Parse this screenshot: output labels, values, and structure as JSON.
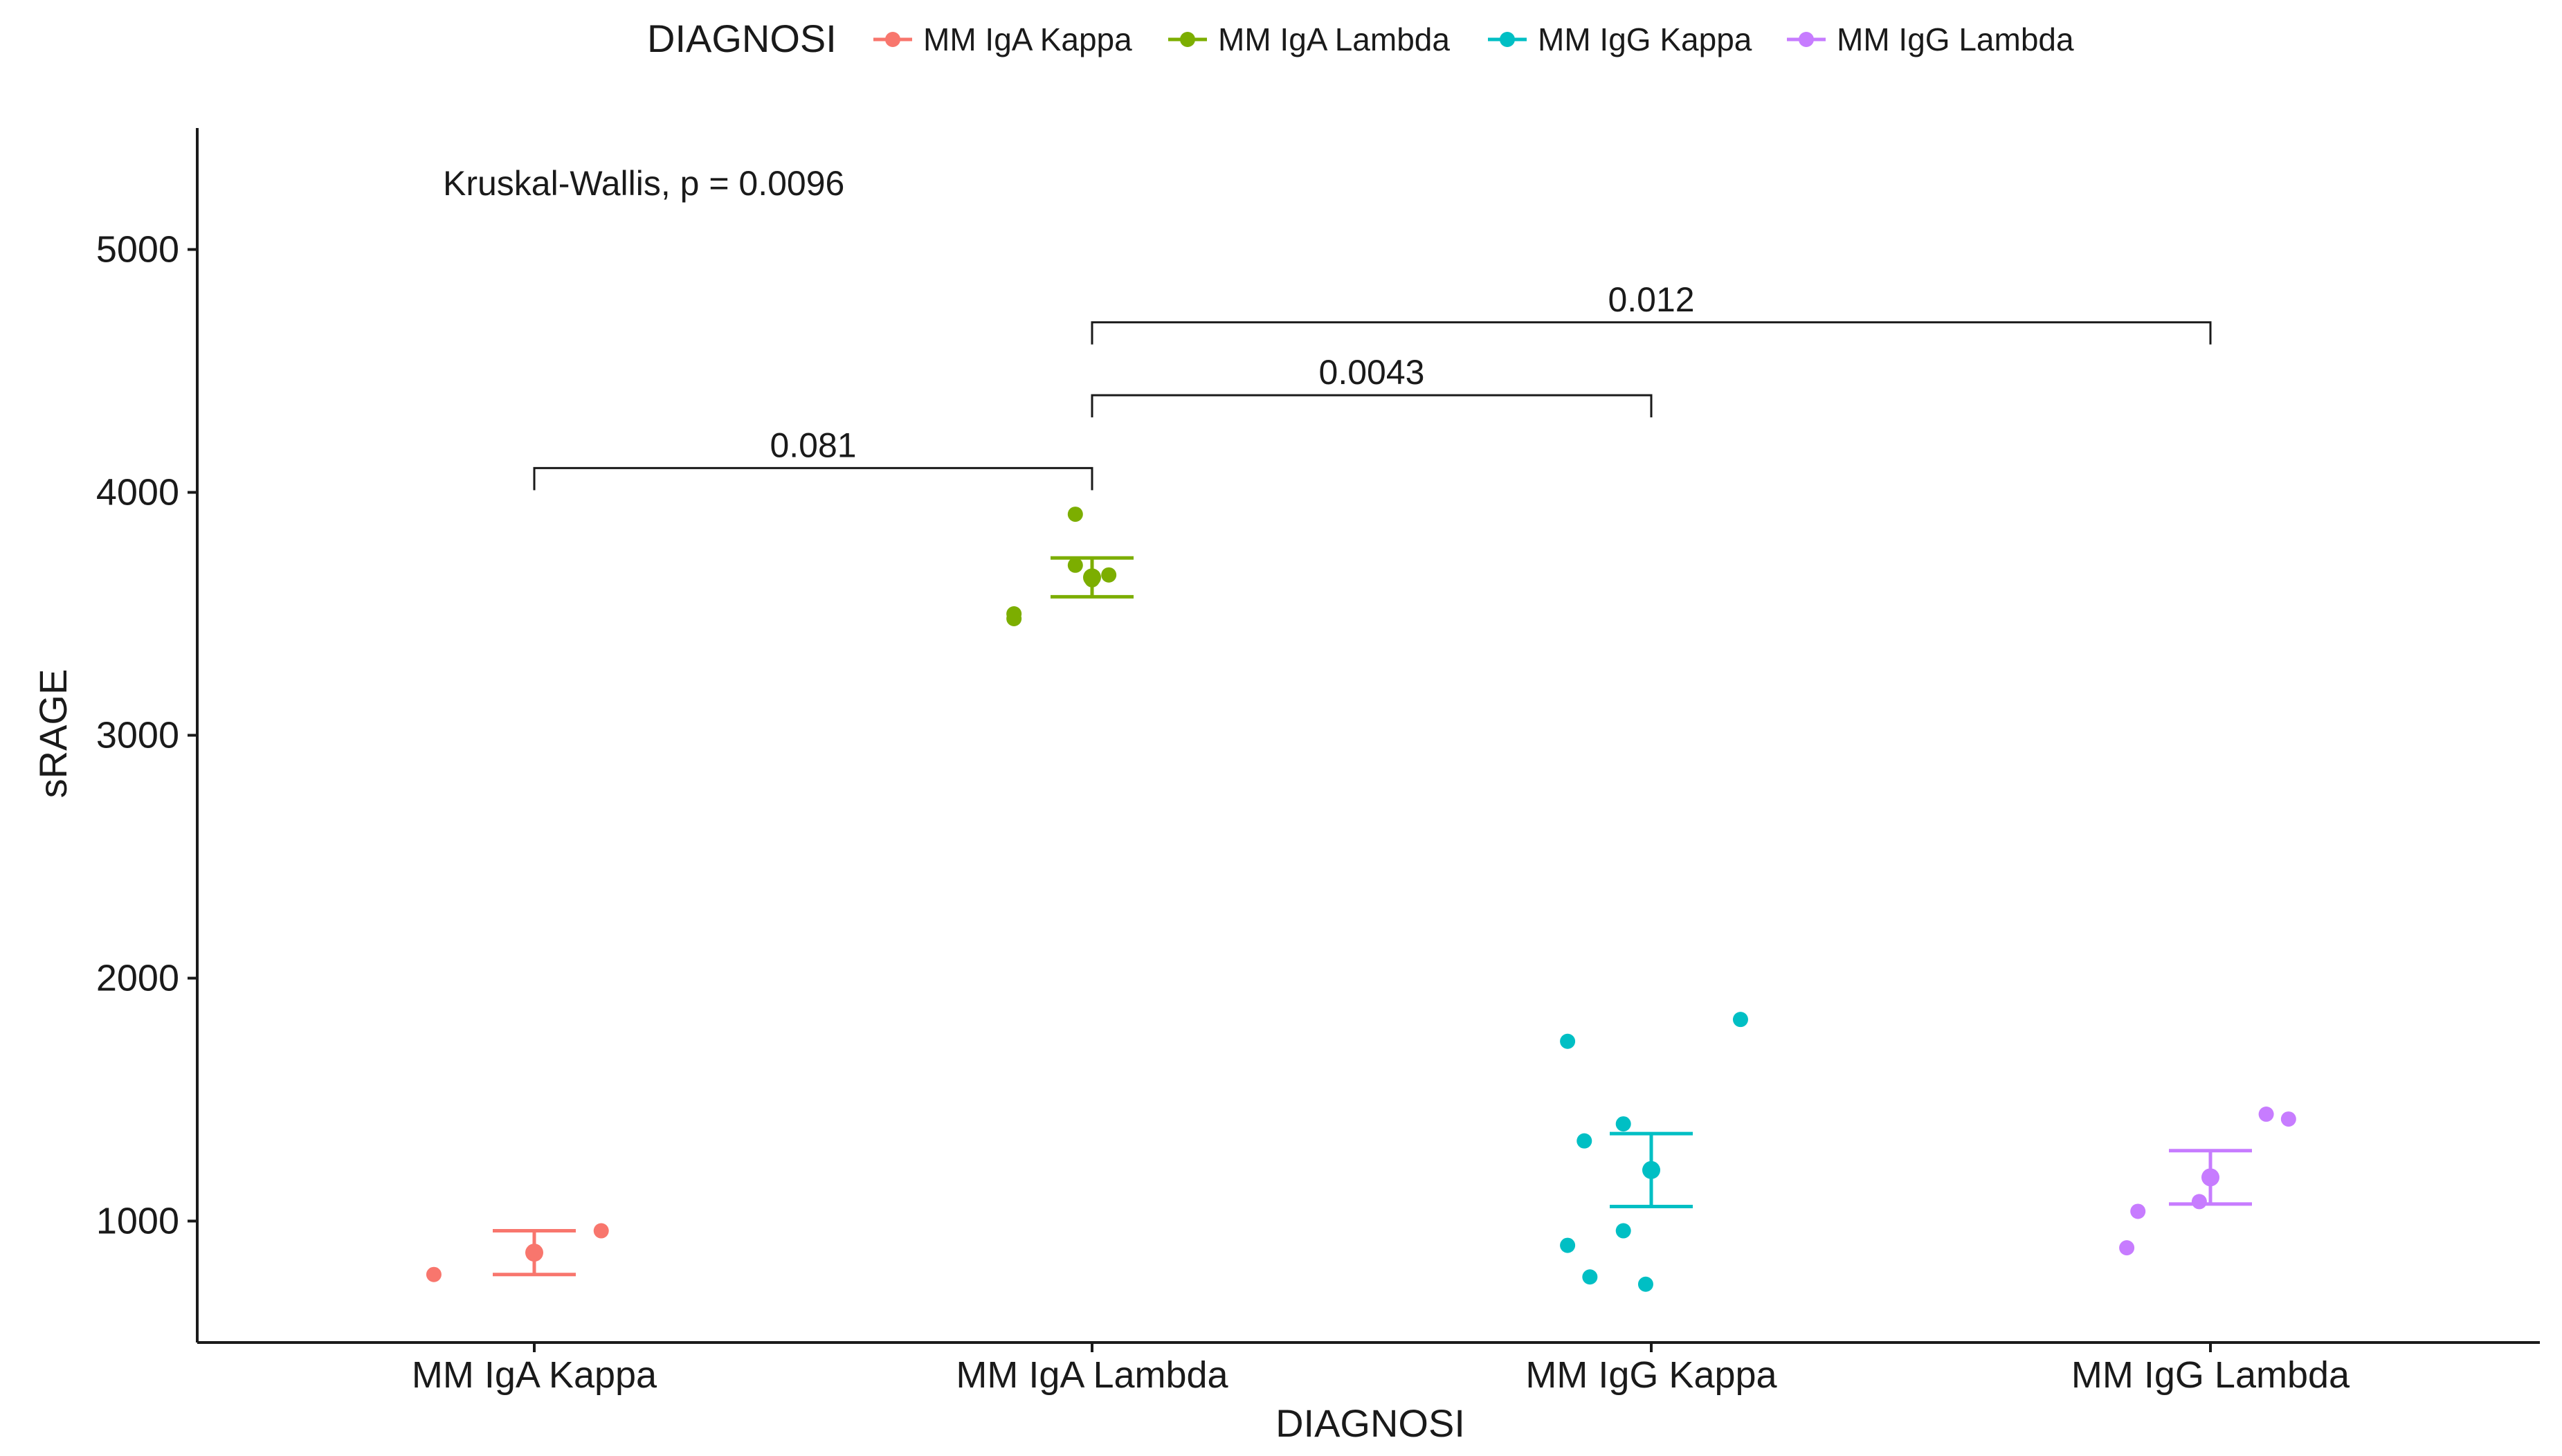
{
  "chart_data": {
    "type": "scatter",
    "title": "",
    "xlabel": "DIAGNOSI",
    "ylabel": "sRAGE",
    "ylim": [
      500,
      5500
    ],
    "yticks": [
      1000,
      2000,
      3000,
      4000,
      5000
    ],
    "grid": false,
    "legend": {
      "title": "DIAGNOSI",
      "position": "top",
      "entries": [
        "MM IgA Kappa",
        "MM IgA Lambda",
        "MM IgG Kappa",
        "MM IgG Lambda"
      ]
    },
    "categories": [
      "MM IgA Kappa",
      "MM IgA Lambda",
      "MM IgG Kappa",
      "MM IgG Lambda"
    ],
    "series": [
      {
        "name": "MM IgA Kappa",
        "color": "#F8766D",
        "points": [
          {
            "jitter": -0.18,
            "y": 780
          },
          {
            "jitter": 0.12,
            "y": 960
          }
        ],
        "mean": 870,
        "error": [
          780,
          960
        ]
      },
      {
        "name": "MM IgA Lambda",
        "color": "#7CAE00",
        "points": [
          {
            "jitter": -0.14,
            "y": 3480
          },
          {
            "jitter": -0.14,
            "y": 3500
          },
          {
            "jitter": -0.03,
            "y": 3910
          },
          {
            "jitter": -0.03,
            "y": 3700
          },
          {
            "jitter": 0.0,
            "y": 3640
          },
          {
            "jitter": 0.03,
            "y": 3660
          }
        ],
        "mean": 3650,
        "error": [
          3570,
          3730
        ]
      },
      {
        "name": "MM IgG Kappa",
        "color": "#00BFC4",
        "points": [
          {
            "jitter": -0.15,
            "y": 1740
          },
          {
            "jitter": -0.12,
            "y": 1330
          },
          {
            "jitter": -0.05,
            "y": 1400
          },
          {
            "jitter": 0.16,
            "y": 1830
          },
          {
            "jitter": -0.15,
            "y": 900
          },
          {
            "jitter": -0.11,
            "y": 770
          },
          {
            "jitter": -0.05,
            "y": 960
          },
          {
            "jitter": -0.01,
            "y": 740
          }
        ],
        "mean": 1210,
        "error": [
          1060,
          1360
        ]
      },
      {
        "name": "MM IgG Lambda",
        "color": "#C77CFF",
        "points": [
          {
            "jitter": -0.15,
            "y": 890
          },
          {
            "jitter": -0.13,
            "y": 1040
          },
          {
            "jitter": -0.02,
            "y": 1080
          },
          {
            "jitter": 0.1,
            "y": 1440
          },
          {
            "jitter": 0.14,
            "y": 1420
          }
        ],
        "mean": 1180,
        "error": [
          1070,
          1290
        ]
      }
    ],
    "annotations": [
      {
        "text": "Kruskal-Wallis, p = 0.0096"
      }
    ],
    "comparisons": [
      {
        "from": "MM IgA Kappa",
        "to": "MM IgA Lambda",
        "y": 4100,
        "label": "0.081"
      },
      {
        "from": "MM IgA Lambda",
        "to": "MM IgG Kappa",
        "y": 4400,
        "label": "0.0043"
      },
      {
        "from": "MM IgA Lambda",
        "to": "MM IgG Lambda",
        "y": 4700,
        "label": "0.012"
      }
    ]
  }
}
